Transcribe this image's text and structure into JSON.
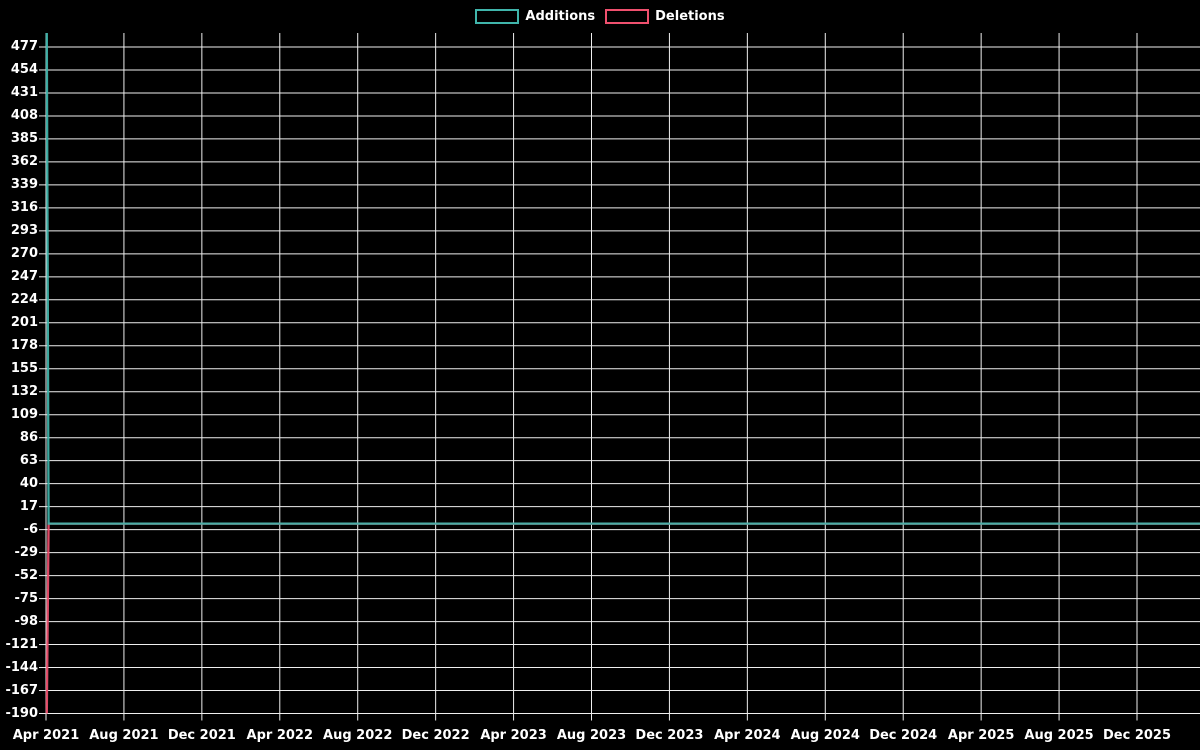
{
  "chart_data": {
    "type": "line",
    "title": "",
    "legend_position": "top-center",
    "background_color": "#000000",
    "grid": true,
    "grid_color": "#efefef",
    "text_color": "#ffffff",
    "x_tick_labels": [
      "Apr 2021",
      "Aug 2021",
      "Dec 2021",
      "Apr 2022",
      "Aug 2022",
      "Dec 2022",
      "Apr 2023",
      "Aug 2023",
      "Dec 2023",
      "Apr 2024",
      "Aug 2024",
      "Dec 2024",
      "Apr 2025",
      "Aug 2025",
      "Dec 2025"
    ],
    "y_ticks": [
      477,
      454,
      431,
      408,
      385,
      362,
      339,
      316,
      293,
      270,
      247,
      224,
      201,
      178,
      155,
      132,
      109,
      86,
      63,
      40,
      17,
      -6,
      -29,
      -52,
      -75,
      -98,
      -121,
      -144,
      -167,
      -190
    ],
    "ylim": [
      -190,
      491
    ],
    "series": [
      {
        "name": "Additions",
        "color": "#40b5ab",
        "points": [
          {
            "x": "Apr 2021 (first week)",
            "y": 491
          },
          {
            "x": "Apr 2021 (following week)",
            "y": 0
          },
          {
            "x": "right edge of chart (after Dec 2025)",
            "y": 0
          }
        ]
      },
      {
        "name": "Deletions",
        "color": "#ef506e",
        "points": [
          {
            "x": "Apr 2021 (first week)",
            "y": -190
          },
          {
            "x": "Apr 2021 (following week)",
            "y": 0
          },
          {
            "x": "right edge of chart (after Dec 2025)",
            "y": 0
          }
        ]
      }
    ]
  }
}
